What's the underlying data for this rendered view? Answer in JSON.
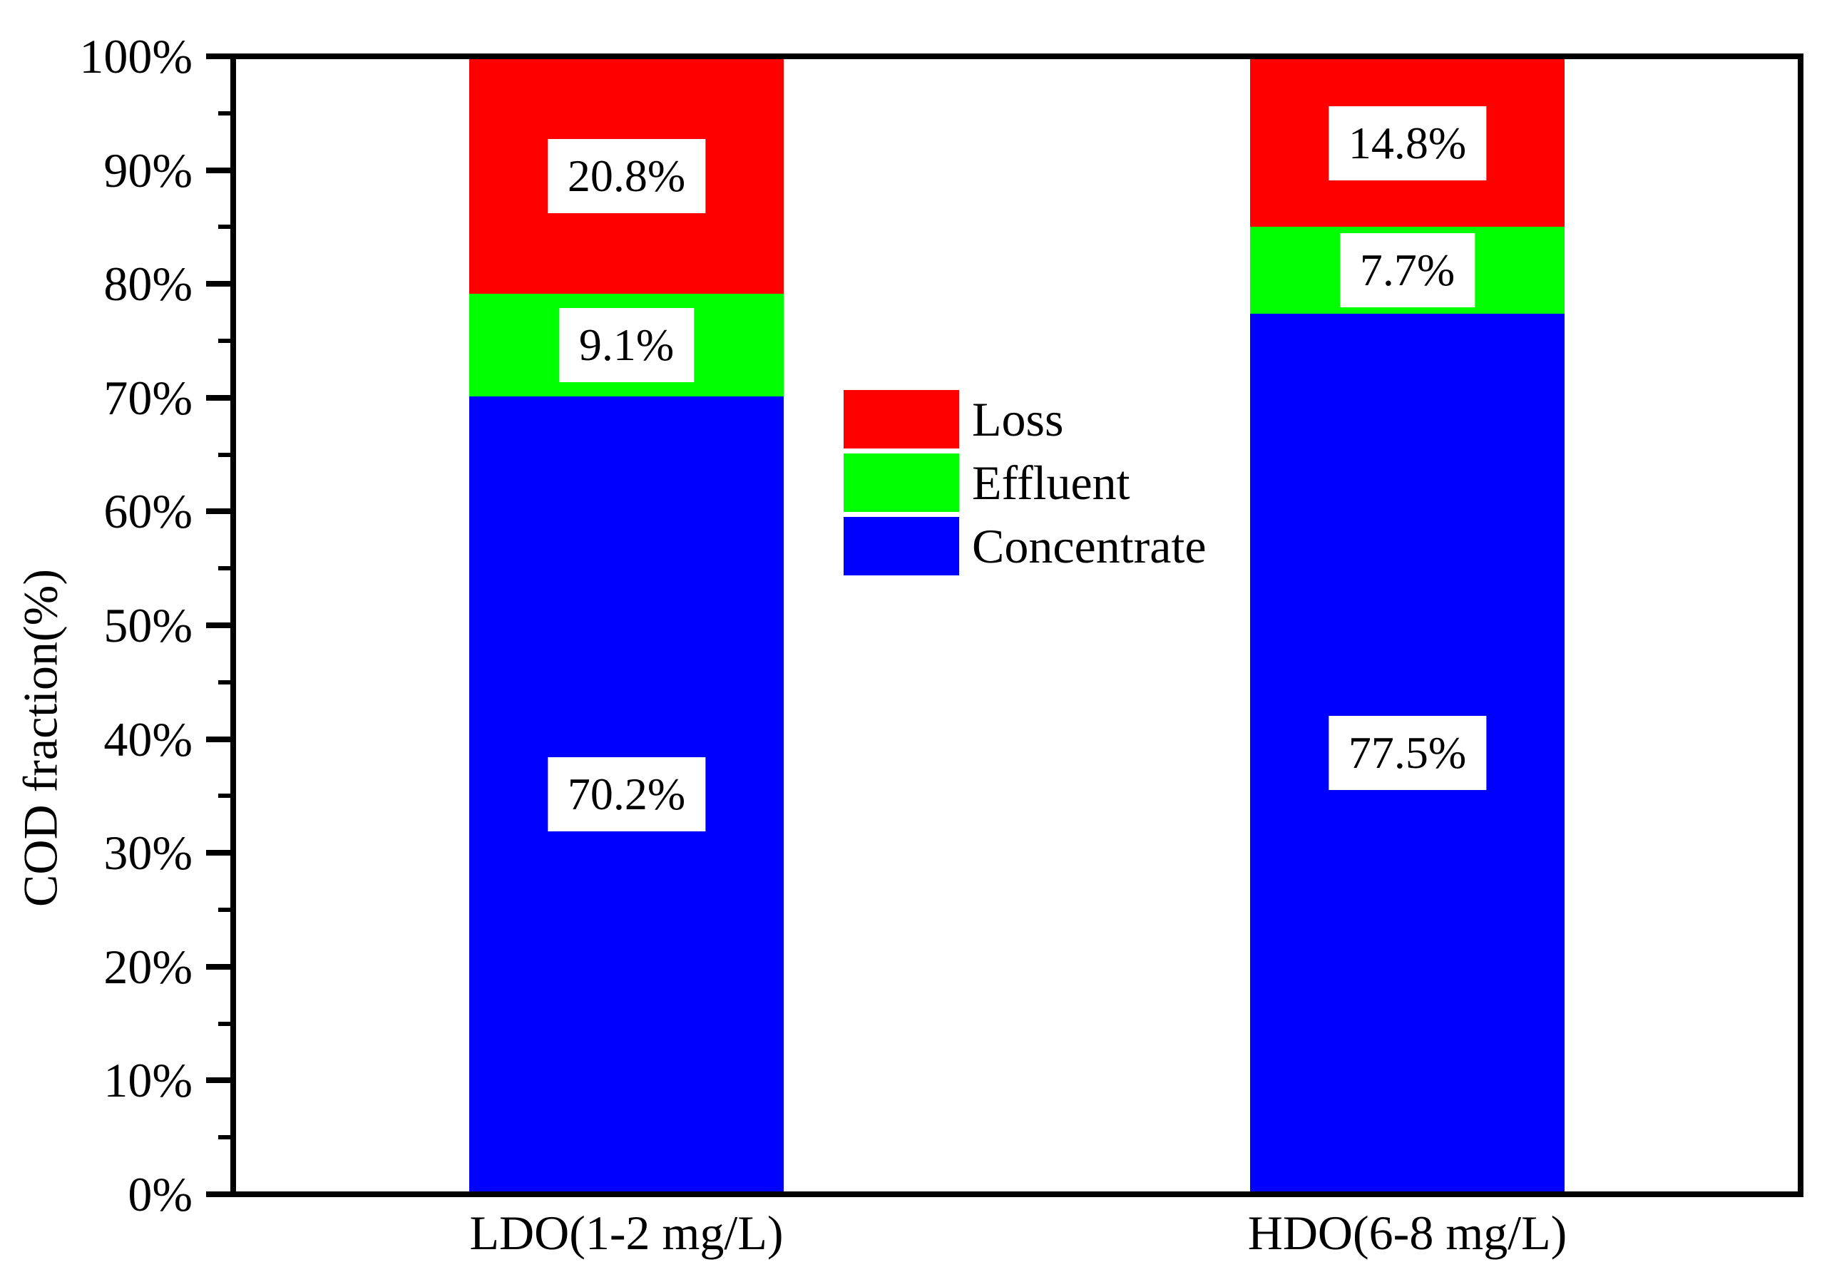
{
  "chart_data": {
    "type": "bar",
    "variant": "stacked-percentage-columns",
    "title": "",
    "xlabel": "",
    "ylabel": "COD fraction(%)",
    "categories": [
      "LDO(1-2 mg/L)",
      "HDO(6-8 mg/L)"
    ],
    "series": [
      {
        "name": "Concentrate",
        "color": "#0000ff",
        "values": [
          70.2,
          77.5
        ],
        "value_labels": [
          "70.2%",
          "77.5%"
        ]
      },
      {
        "name": "Effluent",
        "color": "#00ff00",
        "values": [
          9.1,
          7.7
        ],
        "value_labels": [
          "9.1%",
          "7.7%"
        ]
      },
      {
        "name": "Loss",
        "color": "#ff0000",
        "values": [
          20.8,
          14.8
        ],
        "value_labels": [
          "20.8%",
          "14.8%"
        ]
      }
    ],
    "y_axis": {
      "min": 0,
      "max": 100,
      "major_step": 10,
      "minor_step": 5,
      "tick_suffix": "%",
      "tick_labels": [
        "0%",
        "10%",
        "20%",
        "30%",
        "40%",
        "50%",
        "60%",
        "70%",
        "80%",
        "90%",
        "100%"
      ]
    },
    "legend": {
      "entries": [
        "Loss",
        "Effluent",
        "Concentrate"
      ],
      "position": "center-of-plot"
    },
    "grid": false,
    "frame": true,
    "axis_color": "#000000",
    "background_color": "#ffffff",
    "text_color": "#000000"
  }
}
